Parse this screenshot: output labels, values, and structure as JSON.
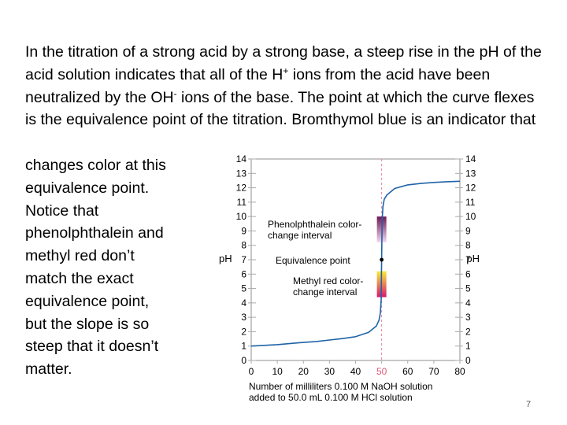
{
  "slide": {
    "paragraph": {
      "part1": "In the titration of a strong acid by a strong base, a steep rise in the pH of the acid solution indicates that all of the H",
      "sup1": "+",
      "part2": " ions from the acid have been neutralized by the OH",
      "sup2": "-",
      "part3": " ions of the base. The point at which the curve flexes is the equivalence point of the titration. Bromthymol blue is  an indicator that"
    },
    "side_lines": [
      "changes color at this",
      "equivalence point.",
      "Notice that",
      "phenolphthalein and",
      "methyl red don’t",
      "match the exact",
      "equivalence point,",
      "but the slope is so",
      "steep that it doesn’t",
      "matter."
    ],
    "page_number": "7"
  },
  "chart_data": {
    "type": "line",
    "ylabel_left": "pH",
    "ylabel_right": "pH",
    "xlabel_line1": "Number of milliliters 0.100 M NaOH solution",
    "xlabel_line2": "added to 50.0 mL 0.100 M HCl solution",
    "xlim": [
      0,
      80
    ],
    "ylim": [
      0,
      14
    ],
    "x_ticks": [
      "0",
      "10",
      "20",
      "30",
      "40",
      "50",
      "60",
      "70",
      "80"
    ],
    "y_ticks": [
      "0",
      "1",
      "2",
      "3",
      "4",
      "5",
      "6",
      "7",
      "8",
      "9",
      "10",
      "11",
      "12",
      "13",
      "14"
    ],
    "highlight_tick": "50",
    "equivalence_x": 50,
    "equivalence_point": {
      "x": 50,
      "y": 7,
      "label": "Equivalence point"
    },
    "series": [
      {
        "x": [
          0,
          5,
          10,
          15,
          20,
          25,
          30,
          35,
          40,
          45,
          48,
          49,
          49.5,
          49.8,
          50,
          50.2,
          50.5,
          51,
          52,
          55,
          60,
          65,
          70,
          75,
          80
        ],
        "y": [
          1.0,
          1.05,
          1.1,
          1.18,
          1.25,
          1.32,
          1.42,
          1.52,
          1.65,
          1.95,
          2.4,
          2.8,
          3.3,
          4.2,
          7.0,
          9.8,
          10.7,
          11.2,
          11.5,
          11.95,
          12.2,
          12.3,
          12.37,
          12.42,
          12.45
        ]
      }
    ],
    "intervals": [
      {
        "label_line1": "Phenolphthalein color-",
        "label_line2": "change interval",
        "ymin": 8.2,
        "ymax": 10.0,
        "color_low": "#f3d8f0",
        "color_high": "#6e1854"
      },
      {
        "label_line1": "Methyl red color-",
        "label_line2": "change interval",
        "ymin": 4.4,
        "ymax": 6.2,
        "color_low": "#d81770",
        "color_high": "#f6ec3a"
      }
    ],
    "colors": {
      "curve": "#1f63a8",
      "axis": "#8f8f8f",
      "tick": "#aaaaaa",
      "equivalence_line": "#e8809c",
      "highlight_tick": "#e05a7a"
    }
  }
}
